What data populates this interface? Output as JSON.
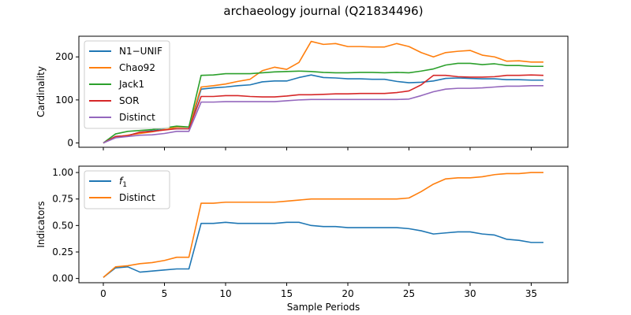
{
  "title": "archaeology journal (Q21834496)",
  "chart_data": [
    {
      "type": "line",
      "xlabel": "",
      "ylabel": "Cardinality",
      "xlim": [
        -2,
        38
      ],
      "ylim": [
        -10,
        248
      ],
      "yticks": [
        0,
        100,
        200
      ],
      "xticks": [
        0,
        5,
        10,
        15,
        20,
        25,
        30,
        35
      ],
      "show_xtick_labels": false,
      "legend_position": "upper left",
      "x": [
        0,
        1,
        2,
        3,
        4,
        5,
        6,
        7,
        8,
        9,
        10,
        11,
        12,
        13,
        14,
        15,
        16,
        17,
        18,
        19,
        20,
        21,
        22,
        23,
        24,
        25,
        26,
        27,
        28,
        29,
        30,
        31,
        32,
        33,
        34,
        35,
        36
      ],
      "series": [
        {
          "name": "N1−UNIF",
          "color": "#1f77b4",
          "values": [
            0,
            15,
            17,
            25,
            28,
            32,
            33,
            33,
            125,
            128,
            130,
            133,
            135,
            142,
            144,
            144,
            152,
            158,
            152,
            151,
            149,
            149,
            148,
            148,
            143,
            140,
            141,
            144,
            150,
            151,
            150,
            149,
            149,
            147,
            147,
            146,
            146
          ]
        },
        {
          "name": "Chao92",
          "color": "#ff7f0e",
          "values": [
            0,
            14,
            18,
            22,
            26,
            31,
            37,
            37,
            130,
            133,
            137,
            143,
            148,
            168,
            176,
            171,
            187,
            236,
            229,
            231,
            224,
            224,
            223,
            223,
            231,
            224,
            210,
            200,
            210,
            213,
            215,
            204,
            200,
            190,
            191,
            188,
            188
          ]
        },
        {
          "name": "Jack1",
          "color": "#2ca02c",
          "values": [
            0,
            21,
            27,
            29,
            31,
            35,
            39,
            37,
            157,
            158,
            161,
            161,
            161,
            163,
            165,
            166,
            167,
            166,
            164,
            163,
            163,
            164,
            164,
            163,
            164,
            163,
            167,
            172,
            181,
            185,
            185,
            182,
            184,
            180,
            180,
            178,
            178
          ]
        },
        {
          "name": "SOR",
          "color": "#d62728",
          "values": [
            0,
            15,
            17,
            25,
            27,
            30,
            33,
            33,
            108,
            108,
            110,
            110,
            108,
            107,
            107,
            109,
            112,
            112,
            113,
            114,
            114,
            115,
            115,
            115,
            117,
            121,
            135,
            157,
            157,
            154,
            153,
            153,
            154,
            157,
            157,
            158,
            157
          ]
        },
        {
          "name": "Distinct",
          "color": "#9467bd",
          "values": [
            0,
            12,
            15,
            18,
            19,
            22,
            27,
            27,
            95,
            95,
            96,
            96,
            96,
            96,
            96,
            98,
            100,
            101,
            101,
            101,
            101,
            101,
            101,
            101,
            101,
            102,
            110,
            119,
            125,
            127,
            127,
            128,
            130,
            132,
            132,
            133,
            133
          ]
        }
      ]
    },
    {
      "type": "line",
      "xlabel": "Sample Periods",
      "ylabel": "Indicators",
      "xlim": [
        -2,
        38
      ],
      "ylim": [
        -0.04,
        1.06
      ],
      "yticks": [
        0.0,
        0.25,
        0.5,
        0.75,
        1.0
      ],
      "ytick_labels": [
        "0.00",
        "0.25",
        "0.50",
        "0.75",
        "1.00"
      ],
      "xticks": [
        0,
        5,
        10,
        15,
        20,
        25,
        30,
        35
      ],
      "xtick_labels": [
        "0",
        "5",
        "10",
        "15",
        "20",
        "25",
        "30",
        "35"
      ],
      "show_xtick_labels": true,
      "legend_position": "upper left",
      "x": [
        0,
        1,
        2,
        3,
        4,
        5,
        6,
        7,
        8,
        9,
        10,
        11,
        12,
        13,
        14,
        15,
        16,
        17,
        18,
        19,
        20,
        21,
        22,
        23,
        24,
        25,
        26,
        27,
        28,
        29,
        30,
        31,
        32,
        33,
        34,
        35,
        36
      ],
      "series": [
        {
          "name": "f1",
          "color": "#1f77b4",
          "values": [
            0.01,
            0.1,
            0.11,
            0.06,
            0.07,
            0.08,
            0.09,
            0.09,
            0.52,
            0.52,
            0.53,
            0.52,
            0.52,
            0.52,
            0.52,
            0.53,
            0.53,
            0.5,
            0.49,
            0.49,
            0.48,
            0.48,
            0.48,
            0.48,
            0.48,
            0.47,
            0.45,
            0.42,
            0.43,
            0.44,
            0.44,
            0.42,
            0.41,
            0.37,
            0.36,
            0.34,
            0.34
          ]
        },
        {
          "name": "Distinct",
          "color": "#ff7f0e",
          "values": [
            0.01,
            0.11,
            0.12,
            0.14,
            0.15,
            0.17,
            0.2,
            0.2,
            0.71,
            0.71,
            0.72,
            0.72,
            0.72,
            0.72,
            0.72,
            0.73,
            0.74,
            0.75,
            0.75,
            0.75,
            0.75,
            0.75,
            0.75,
            0.75,
            0.75,
            0.76,
            0.82,
            0.89,
            0.94,
            0.95,
            0.95,
            0.96,
            0.98,
            0.99,
            0.99,
            1.0,
            1.0
          ]
        }
      ]
    }
  ]
}
